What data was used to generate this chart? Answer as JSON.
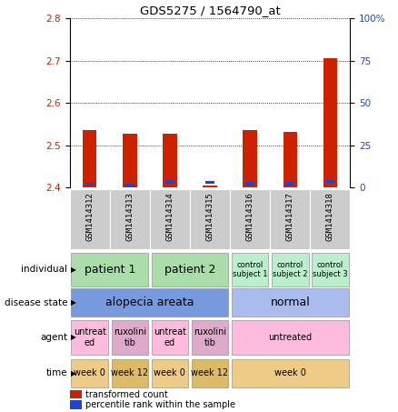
{
  "title": "GDS5275 / 1564790_at",
  "samples": [
    "GSM1414312",
    "GSM1414313",
    "GSM1414314",
    "GSM1414315",
    "GSM1414316",
    "GSM1414317",
    "GSM1414318"
  ],
  "red_values": [
    2.535,
    2.528,
    2.528,
    2.405,
    2.535,
    2.532,
    2.705
  ],
  "blue_values": [
    2.408,
    2.406,
    2.413,
    2.412,
    2.409,
    2.409,
    2.414
  ],
  "ylim": [
    2.4,
    2.8
  ],
  "yticks": [
    2.4,
    2.5,
    2.6,
    2.7,
    2.8
  ],
  "y2lim": [
    0,
    100
  ],
  "y2ticks": [
    0,
    25,
    50,
    75,
    100
  ],
  "y2labels": [
    "0",
    "25",
    "50",
    "75",
    "100%"
  ],
  "row_labels": [
    "individual",
    "disease state",
    "agent",
    "time"
  ],
  "individual_data": [
    {
      "label": "patient 1",
      "span": [
        0,
        2
      ],
      "color": "#aaddaa",
      "fontsize": 9
    },
    {
      "label": "patient 2",
      "span": [
        2,
        4
      ],
      "color": "#aaddaa",
      "fontsize": 9
    },
    {
      "label": "control\nsubject 1",
      "span": [
        4,
        5
      ],
      "color": "#bbeecc",
      "fontsize": 6
    },
    {
      "label": "control\nsubject 2",
      "span": [
        5,
        6
      ],
      "color": "#bbeecc",
      "fontsize": 6
    },
    {
      "label": "control\nsubject 3",
      "span": [
        6,
        7
      ],
      "color": "#bbeecc",
      "fontsize": 6
    }
  ],
  "disease_data": [
    {
      "label": "alopecia areata",
      "span": [
        0,
        4
      ],
      "color": "#7799dd",
      "fontsize": 9
    },
    {
      "label": "normal",
      "span": [
        4,
        7
      ],
      "color": "#aabbee",
      "fontsize": 9
    }
  ],
  "agent_data": [
    {
      "label": "untreat\ned",
      "span": [
        0,
        1
      ],
      "color": "#ffbbdd",
      "fontsize": 7
    },
    {
      "label": "ruxolini\ntib",
      "span": [
        1,
        2
      ],
      "color": "#ddaacc",
      "fontsize": 7
    },
    {
      "label": "untreat\ned",
      "span": [
        2,
        3
      ],
      "color": "#ffbbdd",
      "fontsize": 7
    },
    {
      "label": "ruxolini\ntib",
      "span": [
        3,
        4
      ],
      "color": "#ddaacc",
      "fontsize": 7
    },
    {
      "label": "untreated",
      "span": [
        4,
        7
      ],
      "color": "#ffbbdd",
      "fontsize": 7
    }
  ],
  "time_data": [
    {
      "label": "week 0",
      "span": [
        0,
        1
      ],
      "color": "#eecc88",
      "fontsize": 7
    },
    {
      "label": "week 12",
      "span": [
        1,
        2
      ],
      "color": "#ddbb66",
      "fontsize": 7
    },
    {
      "label": "week 0",
      "span": [
        2,
        3
      ],
      "color": "#eecc88",
      "fontsize": 7
    },
    {
      "label": "week 12",
      "span": [
        3,
        4
      ],
      "color": "#ddbb66",
      "fontsize": 7
    },
    {
      "label": "week 0",
      "span": [
        4,
        7
      ],
      "color": "#eecc88",
      "fontsize": 7
    }
  ],
  "bar_color": "#cc2200",
  "blue_color": "#2244cc",
  "tick_label_color_left": "#cc2200",
  "tick_label_color_right": "#2244cc",
  "sample_bg_color": "#cccccc",
  "legend_red": "transformed count",
  "legend_blue": "percentile rank within the sample",
  "bar_width": 0.35
}
